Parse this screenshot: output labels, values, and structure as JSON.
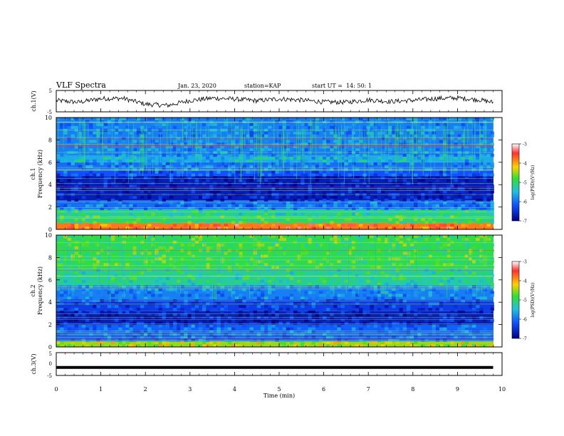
{
  "header": {
    "title": "VLF Spectra",
    "date": "Jan. 23, 2020",
    "station": "station=KAP",
    "start": "start UT =  14: 50: 1"
  },
  "colors": {
    "spectro_low": "#05057a",
    "spectro_mid": "#1aa0d8",
    "spectro_high": "#8ee86a",
    "line_green": "#aef07a",
    "line_red": "#e04040",
    "trace": "#000000"
  },
  "colorbar": {
    "label": "log(PSD)(V²/Hz)",
    "ticks": [
      "-3",
      "-4",
      "-5",
      "-6",
      "-7"
    ],
    "stops": [
      "#ffffff",
      "#ff3030",
      "#ffd000",
      "#30e030",
      "#20c0e0",
      "#1050ff",
      "#00008a"
    ]
  },
  "chart_data": [
    {
      "type": "line",
      "panel": "ch1_waveform",
      "ylabel": "ch.1(V)",
      "ylim": [
        -5,
        5
      ],
      "yticks": [
        "5",
        "-5"
      ],
      "x": [
        0,
        0.5,
        1.0,
        1.5,
        2.0,
        2.5,
        3.0,
        3.5,
        4.0,
        4.5,
        5.0,
        5.5,
        6.0,
        6.5,
        7.0,
        7.5,
        8.0,
        8.5,
        9.0,
        9.5,
        9.8
      ],
      "y": [
        0.3,
        -0.5,
        1.2,
        1.3,
        -1.4,
        -2.0,
        0.3,
        1.4,
        1.0,
        0.2,
        1.1,
        0.5,
        -0.4,
        -0.5,
        0.6,
        -0.2,
        0.4,
        1.2,
        1.5,
        0.6,
        -0.6
      ]
    },
    {
      "type": "heatmap",
      "panel": "ch1_spectrogram",
      "ylabel": "Frequency (kHz)",
      "channel_label": "ch.1",
      "ylim": [
        0,
        10
      ],
      "yticks": [
        "0",
        "2",
        "4",
        "6",
        "8",
        "10"
      ],
      "zlim": [
        -7,
        -3
      ],
      "bands_khz": [
        [
          0,
          0.6,
          -3.8
        ],
        [
          0.6,
          1.2,
          -5.0
        ],
        [
          1.2,
          1.8,
          -5.2
        ],
        [
          1.8,
          2.6,
          -6.0
        ],
        [
          2.6,
          4.8,
          -6.7
        ],
        [
          4.8,
          5.3,
          -6.2
        ],
        [
          5.3,
          6.0,
          -6.0
        ],
        [
          6.0,
          6.6,
          -5.6
        ],
        [
          6.6,
          10,
          -5.9
        ]
      ]
    },
    {
      "type": "heatmap",
      "panel": "ch2_spectrogram",
      "ylabel": "Frequency (kHz)",
      "channel_label": "ch.2",
      "ylim": [
        0,
        10
      ],
      "yticks": [
        "0",
        "2",
        "4",
        "6",
        "8",
        "10"
      ],
      "zlim": [
        -7,
        -3
      ],
      "bands_khz": [
        [
          0,
          0.5,
          -4.5
        ],
        [
          0.5,
          2.0,
          -6.1
        ],
        [
          2.0,
          3.2,
          -6.7
        ],
        [
          3.2,
          4.2,
          -6.4
        ],
        [
          4.2,
          5.5,
          -5.9
        ],
        [
          5.5,
          7.0,
          -5.2
        ],
        [
          7.0,
          10,
          -4.9
        ]
      ]
    },
    {
      "type": "line",
      "panel": "ch3_waveform",
      "ylabel": "ch.3(V)",
      "ylim": [
        -5,
        5
      ],
      "yticks": [
        "5",
        "0",
        "-5"
      ],
      "x": [
        0,
        9.8
      ],
      "y": [
        -1.5,
        -1.5
      ]
    }
  ],
  "xaxis": {
    "label": "Time (min)",
    "ticks": [
      "0",
      "1",
      "2",
      "3",
      "4",
      "5",
      "6",
      "7",
      "8",
      "9",
      "10"
    ],
    "xlim": [
      0,
      10
    ]
  }
}
